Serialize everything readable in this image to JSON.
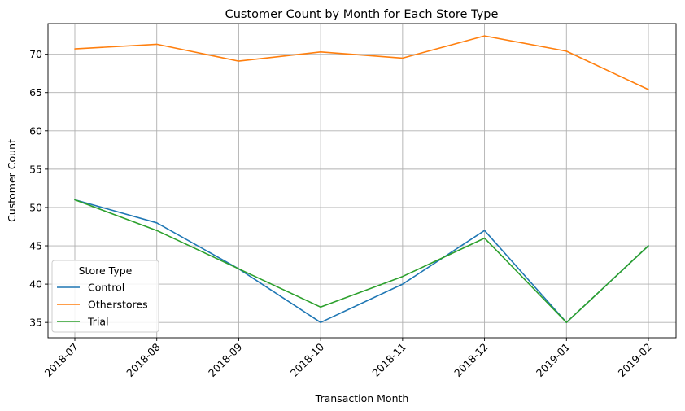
{
  "chart_data": {
    "type": "line",
    "title": "Customer Count by Month for Each Store Type",
    "xlabel": "Transaction Month",
    "ylabel": "Customer Count",
    "categories": [
      "2018-07",
      "2018-08",
      "2018-09",
      "2018-10",
      "2018-11",
      "2018-12",
      "2019-01",
      "2019-02"
    ],
    "ylim": [
      33,
      74
    ],
    "yticks": [
      35,
      40,
      45,
      50,
      55,
      60,
      65,
      70
    ],
    "grid": true,
    "legend": {
      "title": "Store Type",
      "placement": "lower-left"
    },
    "series": [
      {
        "name": "Control",
        "color": "#1f77b4",
        "values": [
          51,
          48,
          42,
          35,
          40,
          47,
          35,
          45
        ]
      },
      {
        "name": "Otherstores",
        "color": "#ff7f0e",
        "values": [
          70.7,
          71.3,
          69.1,
          70.3,
          69.5,
          72.4,
          70.4,
          65.4
        ]
      },
      {
        "name": "Trial",
        "color": "#2ca02c",
        "values": [
          51,
          47,
          42,
          37,
          41,
          46,
          35,
          45
        ]
      }
    ]
  }
}
